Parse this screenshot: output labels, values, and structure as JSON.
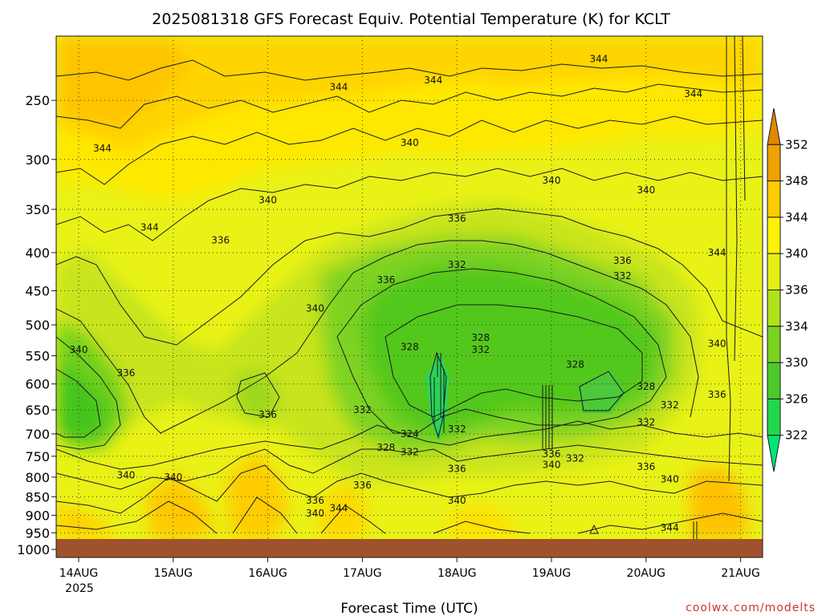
{
  "chart_data": {
    "type": "contour",
    "title": "2025081318 GFS Forecast Equiv. Potential Temperature (K) for KCLT",
    "xlabel": "Forecast Time (UTC)",
    "ylabel": "",
    "credit": "coolwx.com/modelts",
    "x_ticks": [
      "14AUG",
      "15AUG",
      "16AUG",
      "17AUG",
      "18AUG",
      "19AUG",
      "20AUG",
      "21AUG"
    ],
    "x_sub_label": "2025",
    "xlim": [
      "2025-08-13 18Z",
      "2025-08-21 06Z"
    ],
    "y_ticks": [
      250,
      300,
      350,
      400,
      450,
      500,
      550,
      600,
      650,
      700,
      750,
      800,
      850,
      900,
      950,
      1000
    ],
    "ylim": [
      1000,
      200
    ],
    "yscale": "log-pressure",
    "grid": true,
    "colorbar": {
      "levels": [
        322,
        326,
        330,
        334,
        336,
        340,
        344,
        348,
        352
      ],
      "colors": [
        "#00e676",
        "#20d84a",
        "#4cc92c",
        "#7ad11e",
        "#aee21a",
        "#e4f014",
        "#fff200",
        "#ffcc00",
        "#f0a000",
        "#e08800"
      ]
    },
    "contour_labels": [
      {
        "x": "14AUG 06Z",
        "y": 290,
        "text": "344"
      },
      {
        "x": "14AUG 18Z",
        "y": 370,
        "text": "344"
      },
      {
        "x": "14AUG 00Z",
        "y": 540,
        "text": "340"
      },
      {
        "x": "14AUG 12Z",
        "y": 580,
        "text": "336"
      },
      {
        "x": "14AUG 12Z",
        "y": 795,
        "text": "340"
      },
      {
        "x": "15AUG 00Z",
        "y": 800,
        "text": "340"
      },
      {
        "x": "15AUG 12Z",
        "y": 385,
        "text": "336"
      },
      {
        "x": "16AUG 00Z",
        "y": 340,
        "text": "340"
      },
      {
        "x": "16AUG 00Z",
        "y": 660,
        "text": "336"
      },
      {
        "x": "16AUG 12Z",
        "y": 475,
        "text": "340"
      },
      {
        "x": "16AUG 12Z",
        "y": 860,
        "text": "336"
      },
      {
        "x": "16AUG 12Z",
        "y": 895,
        "text": "340"
      },
      {
        "x": "16AUG 18Z",
        "y": 880,
        "text": "344"
      },
      {
        "x": "16AUG 18Z",
        "y": 240,
        "text": "344"
      },
      {
        "x": "17AUG 00Z",
        "y": 650,
        "text": "332"
      },
      {
        "x": "17AUG 00Z",
        "y": 820,
        "text": "336"
      },
      {
        "x": "17AUG 06Z",
        "y": 435,
        "text": "336"
      },
      {
        "x": "17AUG 06Z",
        "y": 730,
        "text": "328"
      },
      {
        "x": "17AUG 12Z",
        "y": 285,
        "text": "340"
      },
      {
        "x": "17AUG 12Z",
        "y": 535,
        "text": "328"
      },
      {
        "x": "17AUG 12Z",
        "y": 700,
        "text": "324"
      },
      {
        "x": "17AUG 12Z",
        "y": 740,
        "text": "332"
      },
      {
        "x": "17AUG 18Z",
        "y": 235,
        "text": "344"
      },
      {
        "x": "18AUG 00Z",
        "y": 360,
        "text": "336"
      },
      {
        "x": "18AUG 00Z",
        "y": 415,
        "text": "332"
      },
      {
        "x": "18AUG 00Z",
        "y": 690,
        "text": "332"
      },
      {
        "x": "18AUG 00Z",
        "y": 780,
        "text": "336"
      },
      {
        "x": "18AUG 00Z",
        "y": 860,
        "text": "340"
      },
      {
        "x": "18AUG 06Z",
        "y": 540,
        "text": "332"
      },
      {
        "x": "18AUG 06Z",
        "y": 520,
        "text": "328"
      },
      {
        "x": "19AUG 00Z",
        "y": 320,
        "text": "340"
      },
      {
        "x": "19AUG 00Z",
        "y": 770,
        "text": "340"
      },
      {
        "x": "19AUG 00Z",
        "y": 745,
        "text": "336"
      },
      {
        "x": "19AUG 06Z",
        "y": 565,
        "text": "328"
      },
      {
        "x": "19AUG 06Z",
        "y": 755,
        "text": "332"
      },
      {
        "x": "19AUG 12Z",
        "y": 220,
        "text": "344"
      },
      {
        "x": "19AUG 18Z",
        "y": 430,
        "text": "332"
      },
      {
        "x": "19AUG 18Z",
        "y": 410,
        "text": "336"
      },
      {
        "x": "20AUG 00Z",
        "y": 330,
        "text": "340"
      },
      {
        "x": "20AUG 00Z",
        "y": 605,
        "text": "328"
      },
      {
        "x": "20AUG 00Z",
        "y": 675,
        "text": "332"
      },
      {
        "x": "20AUG 00Z",
        "y": 775,
        "text": "336"
      },
      {
        "x": "20AUG 06Z",
        "y": 640,
        "text": "332"
      },
      {
        "x": "20AUG 06Z",
        "y": 805,
        "text": "340"
      },
      {
        "x": "20AUG 06Z",
        "y": 935,
        "text": "344"
      },
      {
        "x": "20AUG 12Z",
        "y": 245,
        "text": "344"
      },
      {
        "x": "20AUG 18Z",
        "y": 400,
        "text": "344"
      },
      {
        "x": "20AUG 18Z",
        "y": 530,
        "text": "340"
      },
      {
        "x": "20AUG 18Z",
        "y": 620,
        "text": "336"
      }
    ]
  }
}
